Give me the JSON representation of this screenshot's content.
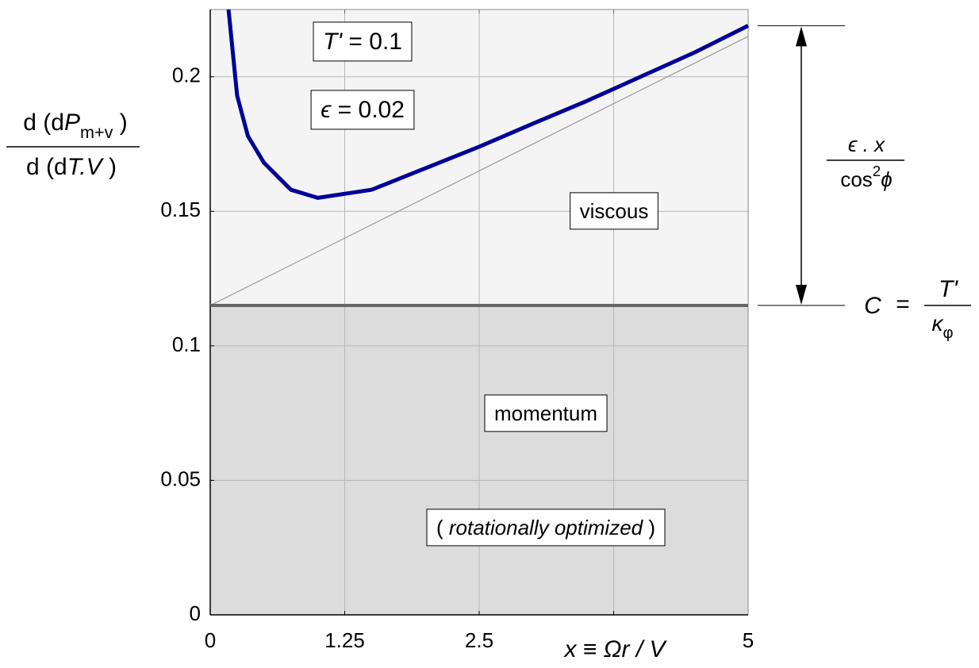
{
  "chart_data": {
    "type": "line",
    "xlim": [
      0,
      5
    ],
    "ylim": [
      0,
      0.225
    ],
    "xticks": [
      0,
      1.25,
      2.5,
      {
        "value": 3.75,
        "label": null
      },
      5
    ],
    "yticks": [
      0,
      0.05,
      0.1,
      0.15,
      0.2
    ],
    "grid": true,
    "x_label": "x ≡ Ωr / V",
    "y_label": {
      "numerator": [
        "d (d",
        "P",
        "m+v",
        " )"
      ],
      "denominator": [
        "d (d",
        "T.V",
        " )"
      ]
    },
    "fill_above_constant": "#f4f4f4",
    "fill_below_constant": "#dcdcdc",
    "series": [
      {
        "color": "#000099",
        "x": [
          0.17,
          0.25,
          0.35,
          0.5,
          0.75,
          1.0,
          1.5,
          2.0,
          2.5,
          3.0,
          3.5,
          4.0,
          4.5,
          5.0
        ],
        "values": [
          0.225,
          0.193,
          0.178,
          0.168,
          0.158,
          0.155,
          0.158,
          0.166,
          0.174,
          0.1826,
          0.191,
          0.2,
          0.209,
          0.219
        ]
      },
      {
        "color": "#999999",
        "x": [
          0,
          5
        ],
        "values": [
          0.115,
          0.215
        ]
      },
      {
        "color": "#666666",
        "x": [
          0,
          5
        ],
        "values": [
          0.115,
          0.115
        ]
      }
    ],
    "annotations": {
      "t_prime": [
        "T'",
        " = 0.1"
      ],
      "epsilon": [
        "ϵ",
        " = 0.02"
      ],
      "viscous": "viscous",
      "momentum": "momentum",
      "optimized": [
        "( ",
        "rotationally optimized",
        " )"
      ],
      "viscous_term": {
        "numerator": "ϵ . x",
        "denominator": [
          "cos",
          "2",
          "ϕ"
        ]
      },
      "constant": {
        "lhs": "C",
        "eq": "=",
        "numerator": "T'",
        "denominator": [
          "κ",
          "φ"
        ]
      }
    }
  }
}
